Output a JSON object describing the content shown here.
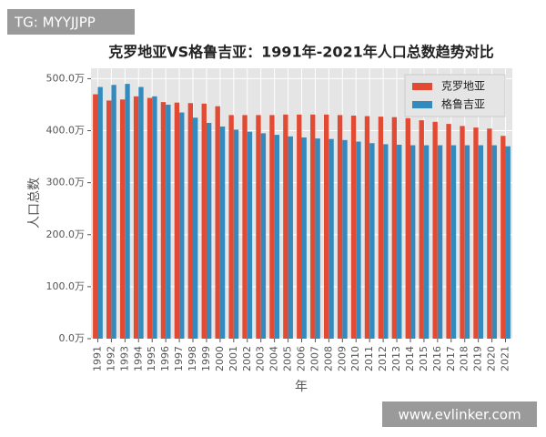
{
  "chart_data": {
    "type": "bar",
    "title": "克罗地亚VS格鲁吉亚：1991年-2021年人口总数趋势对比",
    "y_label": "人口总数",
    "x_label": "年",
    "categories": [
      "1991",
      "1992",
      "1993",
      "1994",
      "1995",
      "1996",
      "1997",
      "1998",
      "1999",
      "2000",
      "2001",
      "2002",
      "2003",
      "2004",
      "2005",
      "2006",
      "2007",
      "2008",
      "2009",
      "2010",
      "2011",
      "2012",
      "2013",
      "2014",
      "2015",
      "2016",
      "2017",
      "2018",
      "2019",
      "2020",
      "2021"
    ],
    "series": [
      {
        "name": "克罗地亚",
        "color": "#E24A33",
        "values": [
          470,
          458,
          460,
          466,
          463,
          455,
          454,
          453,
          452,
          447,
          430,
          430,
          430,
          430,
          431,
          431,
          431,
          431,
          430,
          429,
          428,
          427,
          426,
          424,
          420,
          417,
          413,
          409,
          406,
          404,
          390
        ]
      },
      {
        "name": "格鲁吉亚",
        "color": "#348ABD",
        "values": [
          484,
          488,
          490,
          484,
          466,
          450,
          435,
          425,
          415,
          408,
          402,
          398,
          395,
          392,
          389,
          387,
          385,
          384,
          382,
          379,
          376,
          374,
          373,
          372,
          372,
          372,
          372,
          372,
          372,
          372,
          370
        ]
      }
    ],
    "ylim": [
      0,
      520
    ],
    "yticks": [
      {
        "value": 0,
        "label": "0.0万"
      },
      {
        "value": 100,
        "label": "100.0万"
      },
      {
        "value": 200,
        "label": "200.0万"
      },
      {
        "value": 300,
        "label": "300.0万"
      },
      {
        "value": 400,
        "label": "400.0万"
      },
      {
        "value": 500,
        "label": "500.0万"
      }
    ],
    "grid": true,
    "legend": "upper right"
  },
  "watermarks": [
    "TG: MYYJJPP",
    "www.evlinker.com"
  ]
}
